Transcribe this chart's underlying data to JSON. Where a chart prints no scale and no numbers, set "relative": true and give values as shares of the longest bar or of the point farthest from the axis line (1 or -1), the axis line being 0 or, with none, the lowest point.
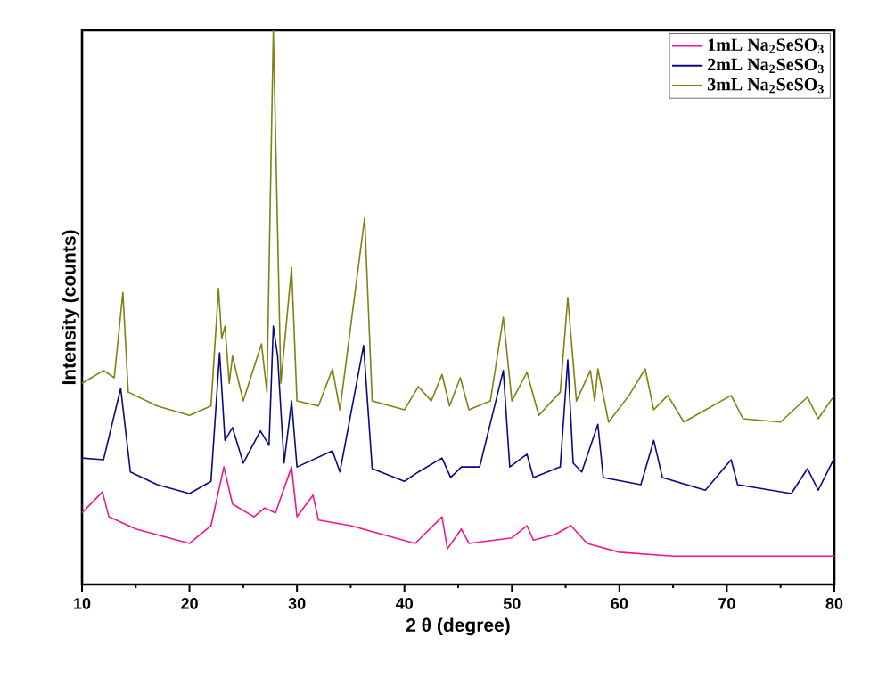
{
  "chart_data": {
    "type": "line",
    "relative": true,
    "xlabel": "2 θ (degree)",
    "ylabel": "Intensity (counts)",
    "xlim": [
      10,
      80
    ],
    "xticks": [
      10,
      20,
      30,
      40,
      50,
      60,
      70,
      80
    ],
    "legend": "top right",
    "marker": "none",
    "line_style": "solid",
    "series": [
      {
        "name": "1mL Na$_{2}$SeSO$_{3}$",
        "color": "#f0168c",
        "x": [
          10,
          11.9,
          12.5,
          15,
          20,
          22,
          23.2,
          24,
          26,
          27,
          28,
          29.5,
          30,
          31.5,
          32,
          35,
          38,
          41,
          43.5,
          44,
          45.3,
          46,
          50,
          51.4,
          52,
          54,
          55.5,
          57,
          60,
          65,
          70,
          75,
          80
        ],
        "values": [
          0.129,
          0.167,
          0.122,
          0.1,
          0.074,
          0.106,
          0.212,
          0.145,
          0.122,
          0.138,
          0.129,
          0.212,
          0.122,
          0.161,
          0.116,
          0.106,
          0.09,
          0.074,
          0.122,
          0.064,
          0.1,
          0.074,
          0.084,
          0.106,
          0.08,
          0.09,
          0.106,
          0.074,
          0.058,
          0.051,
          0.051,
          0.051,
          0.051
        ]
      },
      {
        "name": "2mL Na$_{2}$SeSO$_{3}$",
        "color": "#0a0a80",
        "x": [
          10,
          12,
          13.6,
          14.5,
          17,
          20,
          22,
          22.8,
          23.3,
          24,
          25,
          26.6,
          27.4,
          27.8,
          28.2,
          28.8,
          29.5,
          30,
          33.3,
          34,
          36.2,
          37,
          40,
          41.3,
          43.5,
          44.3,
          45.3,
          47,
          49.2,
          49.8,
          51.4,
          52,
          54.5,
          55.2,
          55.7,
          56.5,
          58,
          58.5,
          62,
          63.2,
          64,
          68,
          70.4,
          71,
          76,
          77.5,
          78.5,
          80
        ],
        "values": [
          0.228,
          0.225,
          0.354,
          0.203,
          0.18,
          0.164,
          0.186,
          0.418,
          0.26,
          0.283,
          0.219,
          0.277,
          0.251,
          0.466,
          0.412,
          0.219,
          0.331,
          0.212,
          0.241,
          0.203,
          0.431,
          0.209,
          0.186,
          0.203,
          0.228,
          0.193,
          0.212,
          0.212,
          0.386,
          0.212,
          0.235,
          0.193,
          0.212,
          0.405,
          0.219,
          0.203,
          0.289,
          0.193,
          0.18,
          0.26,
          0.193,
          0.17,
          0.225,
          0.18,
          0.164,
          0.209,
          0.17,
          0.228
        ]
      },
      {
        "name": "3mL Na$_{2}$SeSO$_{3}$",
        "color": "#808010",
        "x": [
          10,
          12,
          13,
          13.8,
          14.3,
          17,
          20,
          22,
          22.7,
          23.0,
          23.3,
          23.7,
          24,
          25,
          26.7,
          27.2,
          27.8,
          28.5,
          29.5,
          30,
          32,
          33.3,
          34,
          36.3,
          37,
          40,
          41.3,
          42.5,
          43.5,
          44.2,
          45.2,
          46,
          48,
          49.2,
          50,
          51.4,
          52.5,
          54.5,
          55.2,
          56,
          57.3,
          57.7,
          58.0,
          59,
          60.9,
          62.4,
          63.2,
          64.5,
          66,
          70.4,
          71.5,
          75,
          77.5,
          78.5,
          80
        ],
        "values": [
          0.363,
          0.386,
          0.373,
          0.527,
          0.347,
          0.322,
          0.305,
          0.322,
          0.534,
          0.444,
          0.466,
          0.363,
          0.412,
          0.331,
          0.434,
          0.347,
          1.0,
          0.363,
          0.572,
          0.331,
          0.322,
          0.389,
          0.315,
          0.662,
          0.331,
          0.315,
          0.357,
          0.331,
          0.379,
          0.322,
          0.373,
          0.315,
          0.331,
          0.482,
          0.331,
          0.383,
          0.305,
          0.347,
          0.518,
          0.331,
          0.386,
          0.331,
          0.389,
          0.293,
          0.341,
          0.389,
          0.315,
          0.341,
          0.293,
          0.341,
          0.299,
          0.293,
          0.338,
          0.299,
          0.341
        ]
      }
    ]
  }
}
